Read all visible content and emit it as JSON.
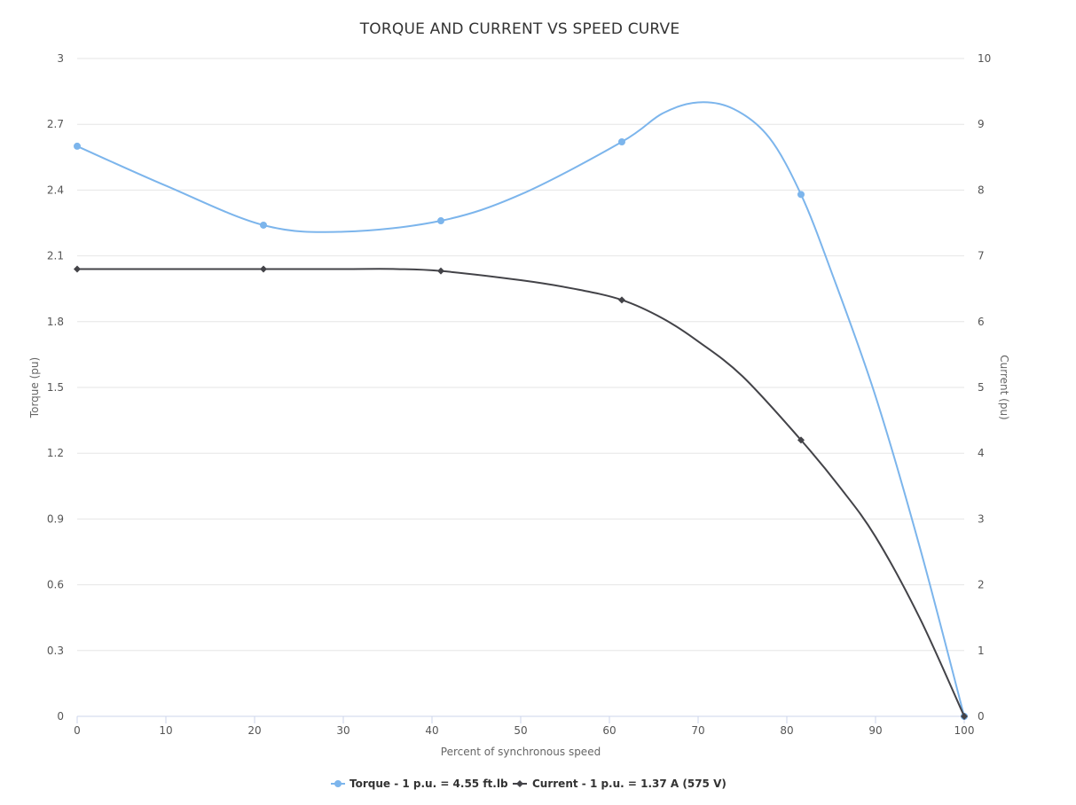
{
  "chart_data": {
    "type": "line",
    "title": "TORQUE AND CURRENT VS SPEED CURVE",
    "xlabel": "Percent of synchronous speed",
    "ylabel_left": "Torque (pu)",
    "ylabel_right": "Current (pu)",
    "xlim": [
      0,
      100
    ],
    "ylim_left": [
      0,
      3
    ],
    "ylim_right": [
      0,
      10
    ],
    "x_ticks": [
      "0",
      "10",
      "20",
      "30",
      "40",
      "50",
      "60",
      "70",
      "80",
      "90",
      "100"
    ],
    "y_ticks_left": [
      "0",
      "0.3",
      "0.6",
      "0.9",
      "1.2",
      "1.5",
      "1.8",
      "2.1",
      "2.4",
      "2.7",
      "3"
    ],
    "y_ticks_right": [
      "0",
      "1",
      "2",
      "3",
      "4",
      "5",
      "6",
      "7",
      "8",
      "9",
      "10"
    ],
    "grid": true,
    "legend_position": "bottom-center",
    "series": [
      {
        "name": "Torque - 1 p.u. = 4.55 ft.lb",
        "axis": "left",
        "color": "#7cb5ec",
        "marker": "circle",
        "markers": [
          [
            0,
            2.6
          ],
          [
            21,
            2.24
          ],
          [
            41,
            2.26
          ],
          [
            61.4,
            2.62
          ],
          [
            81.6,
            2.38
          ],
          [
            100,
            0
          ]
        ],
        "curve": [
          [
            0,
            2.6
          ],
          [
            10,
            2.42
          ],
          [
            21,
            2.24
          ],
          [
            30,
            2.21
          ],
          [
            41,
            2.26
          ],
          [
            50,
            2.38
          ],
          [
            61.4,
            2.62
          ],
          [
            66,
            2.75
          ],
          [
            70,
            2.8
          ],
          [
            74,
            2.77
          ],
          [
            78,
            2.64
          ],
          [
            81.6,
            2.38
          ],
          [
            85,
            2.03
          ],
          [
            90,
            1.46
          ],
          [
            95,
            0.77
          ],
          [
            100,
            0
          ]
        ]
      },
      {
        "name": "Current - 1 p.u. = 1.37 A (575 V)",
        "axis": "right",
        "color": "#434348",
        "marker": "diamond",
        "markers": [
          [
            0,
            6.8
          ],
          [
            21,
            6.8
          ],
          [
            41,
            6.77
          ],
          [
            61.4,
            6.33
          ],
          [
            81.6,
            4.2
          ],
          [
            100,
            0
          ]
        ],
        "curve": [
          [
            0,
            6.8
          ],
          [
            10,
            6.8
          ],
          [
            21,
            6.8
          ],
          [
            30,
            6.8
          ],
          [
            36,
            6.8
          ],
          [
            41,
            6.77
          ],
          [
            50,
            6.63
          ],
          [
            56,
            6.5
          ],
          [
            61.4,
            6.33
          ],
          [
            66,
            6.05
          ],
          [
            70,
            5.7
          ],
          [
            75,
            5.17
          ],
          [
            81.6,
            4.2
          ],
          [
            86,
            3.48
          ],
          [
            90,
            2.73
          ],
          [
            95,
            1.49
          ],
          [
            100,
            0
          ]
        ]
      }
    ]
  }
}
